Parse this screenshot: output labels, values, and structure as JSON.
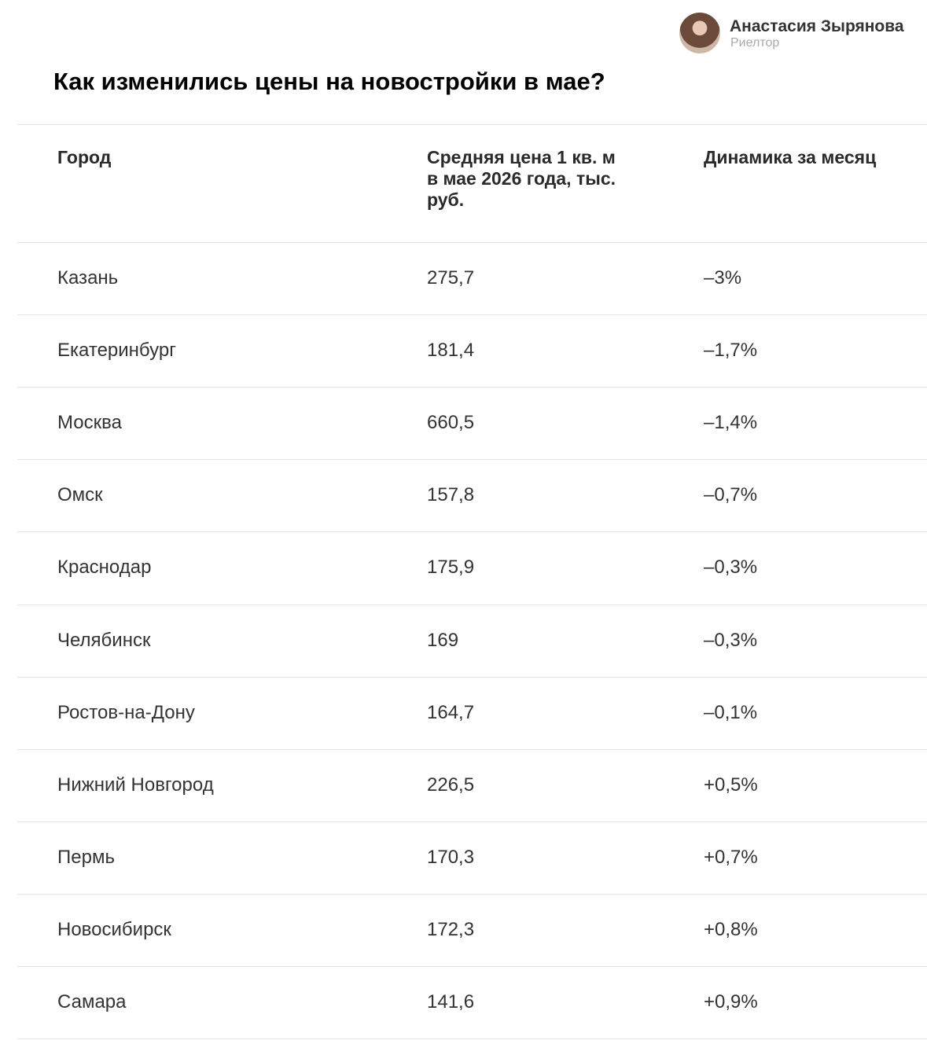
{
  "author": {
    "name": "Анастасия Зырянова",
    "role": "Риелтор"
  },
  "header": {
    "title": "Как изменились цены на новостройки в мае?"
  },
  "table": {
    "columns": [
      "Город",
      "Средняя цена 1 кв. м в мае 2026 года, тыс. руб.",
      "Динамика за месяц"
    ],
    "rows": [
      [
        "Казань",
        "275,7",
        "–3%"
      ],
      [
        "Екатеринбург",
        "181,4",
        "–1,7%"
      ],
      [
        "Москва",
        "660,5",
        "–1,4%"
      ],
      [
        "Омск",
        "157,8",
        "–0,7%"
      ],
      [
        "Краснодар",
        "175,9",
        "–0,3%"
      ],
      [
        "Челябинск",
        "169",
        "–0,3%"
      ],
      [
        "Ростов-на-Дону",
        "164,7",
        "–0,1%"
      ],
      [
        "Нижний Новгород",
        "226,5",
        "+0,5%"
      ],
      [
        "Пермь",
        "170,3",
        "+0,7%"
      ],
      [
        "Новосибирск",
        "172,3",
        "+0,8%"
      ],
      [
        "Самара",
        "141,6",
        "+0,9%"
      ]
    ]
  }
}
